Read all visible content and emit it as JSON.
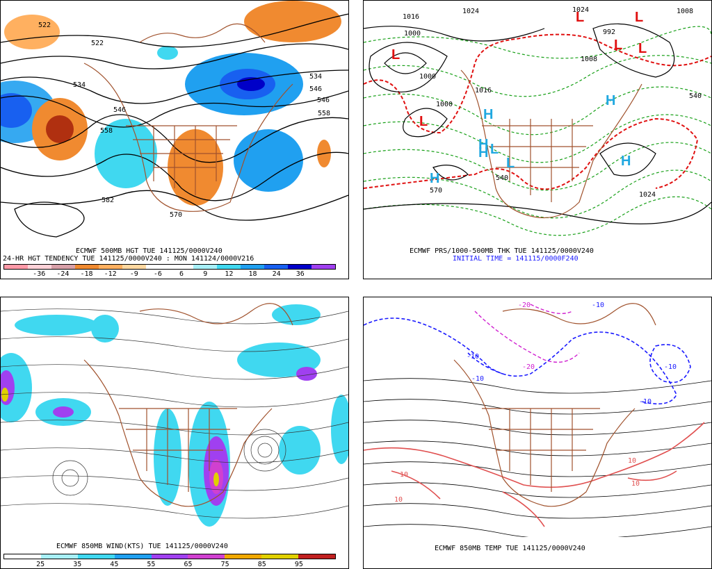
{
  "panels": {
    "tl": {
      "caption1": "ECMWF 500MB HGT TUE 141125/0000V240",
      "caption2": "24-HR HGT TENDENCY TUE 141125/0000V240 : MON 141124/0000V216",
      "contour_labels": [
        "522",
        "522",
        "534",
        "546",
        "558",
        "582",
        "570",
        "534",
        "546",
        "558",
        "546"
      ],
      "colorbar": {
        "colors": [
          "#ff9aa8",
          "#ffd2d8",
          "#d8a0a8",
          "#f08a30",
          "#ffb060",
          "#ffd8a0",
          "#ffffff",
          "#ffffff",
          "#a8f0f8",
          "#40d8f0",
          "#20a0f0",
          "#1860f0",
          "#0000c8",
          "#a040f0"
        ],
        "labels": [
          "-36",
          "-24",
          "-18",
          "-12",
          "-9",
          "-6",
          "6",
          "9",
          "12",
          "18",
          "24",
          "36"
        ]
      }
    },
    "tr": {
      "caption1": "ECMWF PRS/1000-500MB THK TUE 141125/0000V240",
      "caption2": "INITIAL TIME = 141115/0000F240",
      "contour_labels": [
        "1016",
        "1024",
        "1000",
        "992",
        "1000",
        "1008",
        "1016",
        "1024",
        "540",
        "570",
        "540",
        "1024",
        "1008",
        "1000"
      ],
      "pressure_centers": [
        "L",
        "L",
        "L",
        "L",
        "L",
        "L",
        "H",
        "H",
        "H",
        "H",
        "H",
        "H",
        "L",
        "L"
      ]
    },
    "bl": {
      "caption1": "ECMWF 850MB WIND(KTS) TUE 141125/0000V240",
      "colorbar": {
        "colors": [
          "#ffffff",
          "#a8f0f8",
          "#40d8f0",
          "#20a0f0",
          "#a040f0",
          "#d040d0",
          "#f0a800",
          "#e0d000",
          "#c02020"
        ],
        "labels": [
          "25",
          "35",
          "45",
          "55",
          "65",
          "75",
          "85",
          "95"
        ]
      }
    },
    "br": {
      "caption1": "ECMWF 850MB TEMP TUE 141125/0000V240",
      "contour_labels": [
        "-20",
        "-10",
        "-10",
        "-20",
        "-10",
        "10",
        "10",
        "10",
        "10",
        "-10",
        "-10"
      ]
    }
  }
}
